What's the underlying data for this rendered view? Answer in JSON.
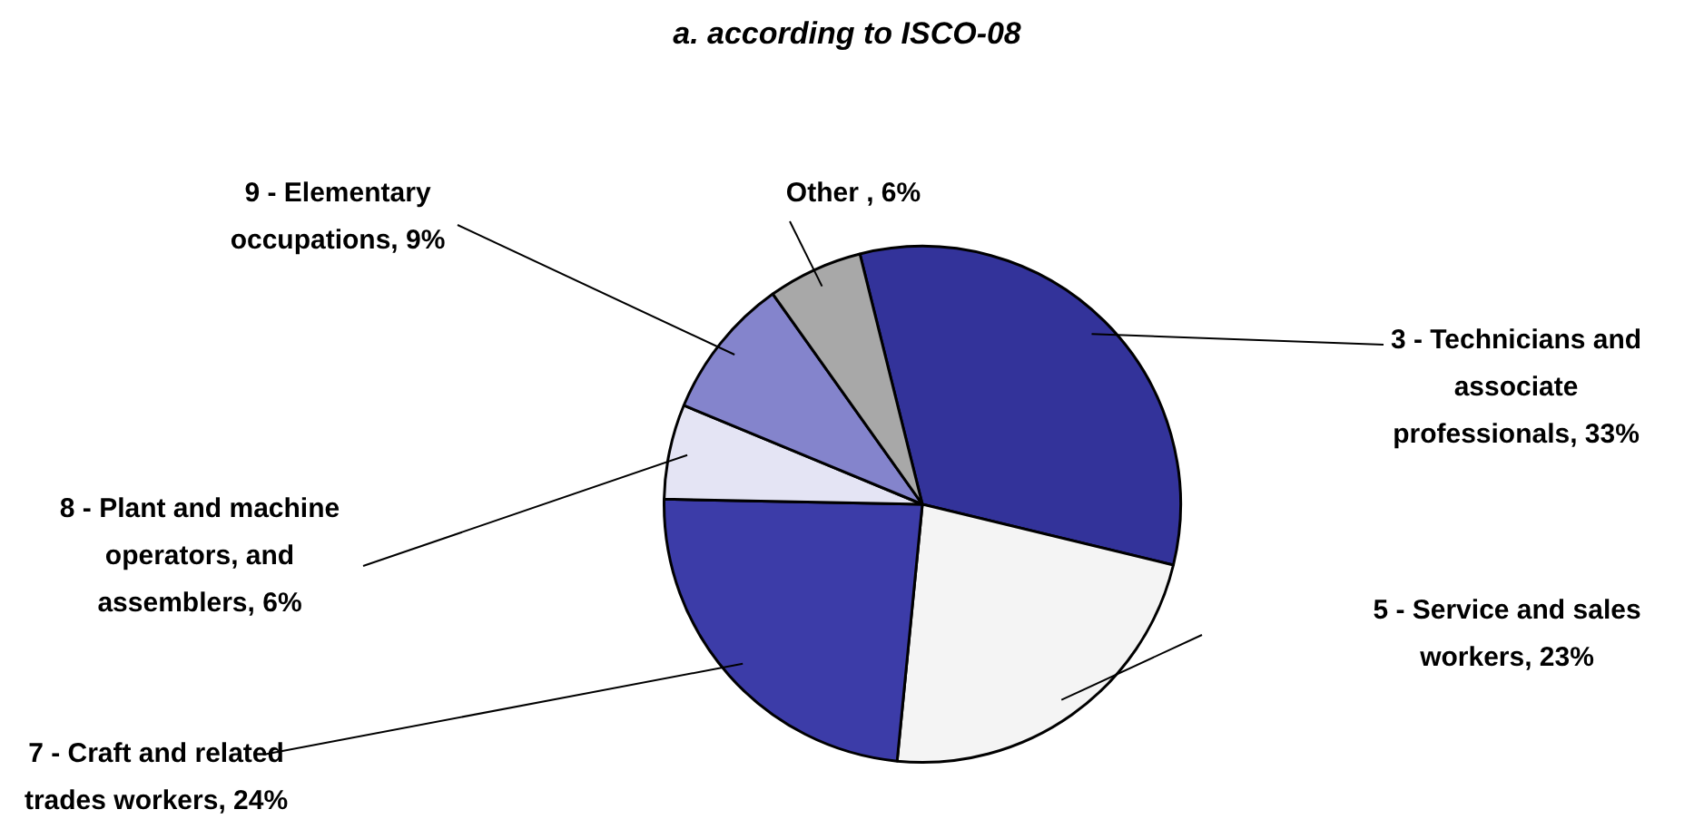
{
  "chart_data": {
    "type": "pie",
    "title": "a. according to ISCO-08",
    "categories": [
      "3 - Technicians and associate professionals, 33%",
      "5 - Service and sales workers, 23%",
      "7 - Craft and related trades workers, 24%",
      "8 - Plant and machine operators, and assemblers, 6%",
      "9 - Elementary occupations, 9%",
      "Other , 6%"
    ],
    "values": [
      33,
      23,
      24,
      6,
      9,
      6
    ],
    "colors": [
      "#33339a",
      "#f4f4f4",
      "#3c3ca8",
      "#e4e4f4",
      "#8484cc",
      "#a8a8a8"
    ],
    "legend": false
  }
}
